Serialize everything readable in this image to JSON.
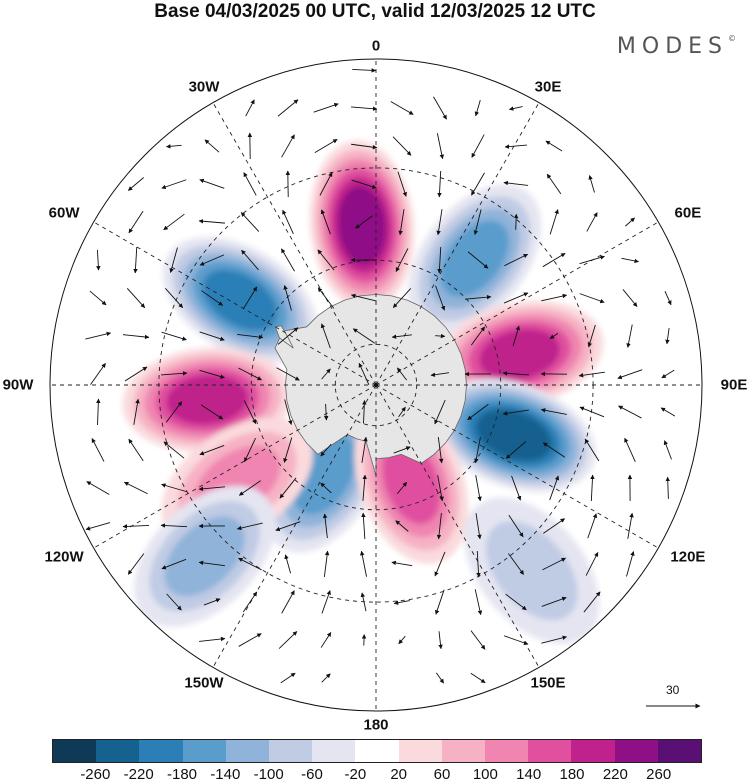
{
  "title": "Base 04/03/2025 00 UTC, valid 12/03/2025 12 UTC",
  "brand": "MODES",
  "brand_mark": "©",
  "meridian_labels": [
    {
      "text": "0",
      "lon": 0
    },
    {
      "text": "30E",
      "lon": 30
    },
    {
      "text": "60E",
      "lon": 60
    },
    {
      "text": "90E",
      "lon": 90
    },
    {
      "text": "120E",
      "lon": 120
    },
    {
      "text": "150E",
      "lon": 150
    },
    {
      "text": "180",
      "lon": 180
    },
    {
      "text": "150W",
      "lon": -150
    },
    {
      "text": "120W",
      "lon": -120
    },
    {
      "text": "90W",
      "lon": -90
    },
    {
      "text": "60W",
      "lon": -60
    },
    {
      "text": "30W",
      "lon": -30
    }
  ],
  "reference_vector": "30",
  "colorbar": {
    "colors": [
      "#0e3a57",
      "#15618f",
      "#2c7fb6",
      "#5a9ccc",
      "#8fb3d9",
      "#c0cbe4",
      "#e4e5f1",
      "#ffffff",
      "#fadadd",
      "#f6b2c4",
      "#ef85b0",
      "#e0509f",
      "#c0218c",
      "#8f0f86",
      "#5a0f74"
    ],
    "ticks": [
      "-260",
      "-220",
      "-180",
      "-140",
      "-100",
      "-60",
      "-20",
      "20",
      "60",
      "100",
      "140",
      "180",
      "220",
      "260"
    ]
  },
  "anomaly_centers": [
    {
      "lon": -5,
      "lat": -52,
      "value": 260,
      "sign": "positive"
    },
    {
      "lon": 38,
      "lat": -52,
      "value": -170,
      "sign": "negative"
    },
    {
      "lon": -58,
      "lat": -52,
      "value": -230,
      "sign": "negative"
    },
    {
      "lon": 78,
      "lat": -55,
      "value": 230,
      "sign": "positive"
    },
    {
      "lon": -95,
      "lat": -50,
      "value": 200,
      "sign": "positive"
    },
    {
      "lon": 110,
      "lat": -55,
      "value": -260,
      "sign": "negative"
    },
    {
      "lon": -150,
      "lat": -65,
      "value": -170,
      "sign": "negative"
    },
    {
      "lon": 160,
      "lat": -65,
      "value": 180,
      "sign": "positive"
    },
    {
      "lon": -125,
      "lat": -50,
      "value": 140,
      "sign": "positive"
    },
    {
      "lon": -135,
      "lat": -35,
      "value": -140,
      "sign": "negative"
    },
    {
      "lon": 140,
      "lat": -35,
      "value": -80,
      "sign": "negative"
    }
  ]
}
